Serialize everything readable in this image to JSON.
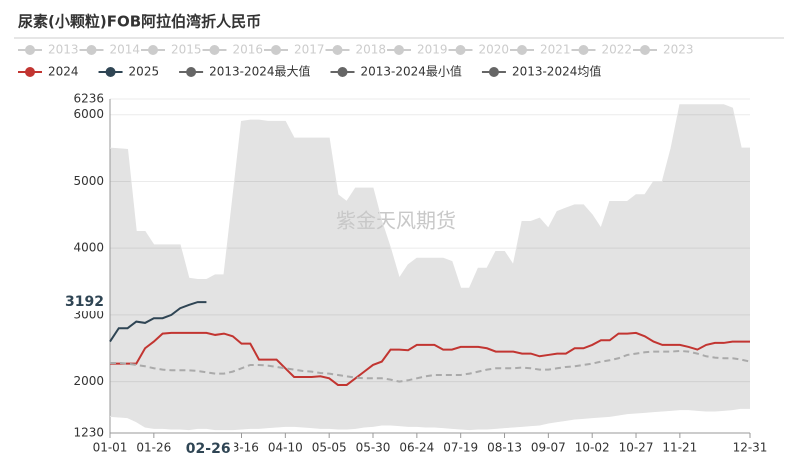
{
  "chart_data": {
    "type": "line",
    "title": "尿素(小颗粒)FOB阿拉伯湾折人民币",
    "watermark": "紫金天风期货",
    "legend_inactive": [
      "2013",
      "2014",
      "2015",
      "2016",
      "2017",
      "2018",
      "2019",
      "2020",
      "2021",
      "2022",
      "2023"
    ],
    "categories": [
      "01-01",
      null,
      null,
      null,
      null,
      "01-26",
      null,
      null,
      null,
      null,
      null,
      null,
      null,
      null,
      null,
      "03-16",
      null,
      null,
      null,
      null,
      "04-10",
      null,
      null,
      null,
      null,
      "05-05",
      null,
      null,
      null,
      null,
      "05-30",
      null,
      null,
      null,
      null,
      "06-24",
      null,
      null,
      null,
      null,
      "07-19",
      null,
      null,
      null,
      null,
      "08-13",
      null,
      null,
      null,
      null,
      "09-07",
      null,
      null,
      null,
      null,
      "10-02",
      null,
      null,
      null,
      null,
      "10-27",
      null,
      null,
      null,
      null,
      "11-21",
      null,
      null,
      null,
      null,
      null,
      null,
      null,
      "12-31"
    ],
    "ylim": [
      1230,
      6236
    ],
    "yticks": [
      1230,
      2000,
      3000,
      4000,
      5000,
      6000,
      6236
    ],
    "grid": true,
    "axis_pointer": {
      "x": "02-26",
      "y": 3192
    },
    "series": [
      {
        "name": "2024",
        "color": "#c23531",
        "style": "line",
        "values": [
          2270,
          2270,
          2270,
          2270,
          2500,
          2600,
          2720,
          2730,
          2730,
          2730,
          2730,
          2730,
          2700,
          2720,
          2680,
          2570,
          2570,
          2330,
          2330,
          2330,
          2200,
          2070,
          2070,
          2070,
          2080,
          2050,
          1950,
          1950,
          2050,
          2150,
          2250,
          2300,
          2480,
          2480,
          2470,
          2550,
          2550,
          2550,
          2480,
          2480,
          2520,
          2520,
          2520,
          2500,
          2450,
          2450,
          2450,
          2420,
          2420,
          2380,
          2400,
          2420,
          2420,
          2500,
          2500,
          2550,
          2620,
          2620,
          2720,
          2720,
          2730,
          2680,
          2600,
          2550,
          2550,
          2550,
          2520,
          2480,
          2550,
          2580,
          2580,
          2600,
          2600,
          2600
        ]
      },
      {
        "name": "2025",
        "color": "#2f4554",
        "style": "line",
        "values": [
          2600,
          2800,
          2800,
          2900,
          2880,
          2950,
          2950,
          3000,
          3100,
          3150,
          3192,
          3192,
          null,
          null,
          null,
          null,
          null,
          null,
          null,
          null,
          null,
          null,
          null,
          null,
          null,
          null,
          null,
          null,
          null,
          null,
          null,
          null,
          null,
          null,
          null,
          null,
          null,
          null,
          null,
          null,
          null,
          null,
          null,
          null,
          null,
          null,
          null,
          null,
          null,
          null,
          null,
          null,
          null,
          null,
          null,
          null,
          null,
          null,
          null,
          null,
          null,
          null,
          null,
          null,
          null,
          null,
          null,
          null,
          null,
          null,
          null,
          null,
          null,
          null
        ]
      },
      {
        "name": "2013-2024最大值",
        "color": "#666666",
        "style": "band-top",
        "values": [
          5500,
          5490,
          5480,
          4250,
          4250,
          4050,
          4050,
          4050,
          4050,
          3550,
          3530,
          3530,
          3600,
          3600,
          4750,
          5900,
          5920,
          5920,
          5900,
          5900,
          5900,
          5650,
          5650,
          5650,
          5650,
          5650,
          4800,
          4700,
          4900,
          4900,
          4900,
          4400,
          4000,
          3550,
          3750,
          3850,
          3850,
          3850,
          3850,
          3800,
          3400,
          3400,
          3700,
          3700,
          3950,
          3950,
          3750,
          4400,
          4400,
          4450,
          4300,
          4550,
          4600,
          4650,
          4650,
          4500,
          4300,
          4700,
          4700,
          4700,
          4800,
          4800,
          5000,
          5000,
          5500,
          6150,
          6150,
          6150,
          6150,
          6150,
          6150,
          6100,
          5500,
          5500
        ]
      },
      {
        "name": "2013-2024最小值",
        "color": "#666666",
        "style": "band-bottom",
        "values": [
          1480,
          1470,
          1460,
          1400,
          1320,
          1300,
          1300,
          1290,
          1290,
          1280,
          1300,
          1300,
          1280,
          1280,
          1280,
          1290,
          1300,
          1300,
          1310,
          1320,
          1330,
          1330,
          1320,
          1310,
          1300,
          1300,
          1290,
          1290,
          1300,
          1320,
          1330,
          1350,
          1350,
          1340,
          1330,
          1330,
          1320,
          1320,
          1310,
          1300,
          1290,
          1280,
          1290,
          1290,
          1300,
          1310,
          1320,
          1330,
          1340,
          1350,
          1380,
          1400,
          1420,
          1440,
          1450,
          1460,
          1470,
          1480,
          1500,
          1520,
          1530,
          1540,
          1550,
          1560,
          1570,
          1580,
          1580,
          1570,
          1560,
          1560,
          1570,
          1580,
          1600,
          1600
        ]
      },
      {
        "name": "2013-2024均值",
        "color": "#666666",
        "style": "dashed",
        "values": [
          2280,
          2280,
          2270,
          2250,
          2230,
          2200,
          2180,
          2170,
          2170,
          2170,
          2160,
          2140,
          2120,
          2120,
          2150,
          2200,
          2250,
          2250,
          2240,
          2220,
          2200,
          2180,
          2160,
          2150,
          2130,
          2120,
          2100,
          2080,
          2060,
          2050,
          2050,
          2050,
          2030,
          2000,
          2020,
          2050,
          2080,
          2100,
          2100,
          2100,
          2100,
          2120,
          2150,
          2180,
          2200,
          2200,
          2200,
          2210,
          2200,
          2180,
          2180,
          2200,
          2220,
          2230,
          2250,
          2270,
          2300,
          2320,
          2350,
          2400,
          2420,
          2440,
          2450,
          2450,
          2450,
          2460,
          2450,
          2420,
          2380,
          2360,
          2350,
          2350,
          2330,
          2300
        ]
      }
    ]
  }
}
